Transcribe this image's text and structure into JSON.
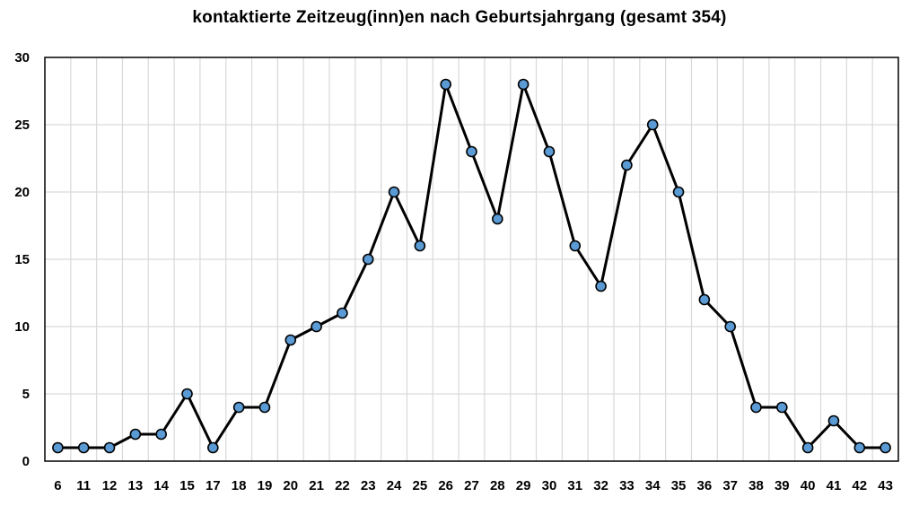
{
  "chart_data": {
    "type": "line",
    "title": "kontaktierte Zeitzeug(inn)en nach Geburtsjahrgang (gesamt 354)",
    "xlabel": "",
    "ylabel": "",
    "categories": [
      "6",
      "11",
      "12",
      "13",
      "14",
      "15",
      "17",
      "18",
      "19",
      "20",
      "21",
      "22",
      "23",
      "24",
      "25",
      "26",
      "27",
      "28",
      "29",
      "30",
      "31",
      "32",
      "33",
      "34",
      "35",
      "36",
      "37",
      "38",
      "39",
      "40",
      "41",
      "42",
      "43"
    ],
    "series": [
      {
        "values": [
          1,
          1,
          1,
          2,
          2,
          5,
          1,
          4,
          4,
          9,
          10,
          11,
          15,
          20,
          16,
          28,
          23,
          18,
          28,
          23,
          16,
          13,
          22,
          25,
          20,
          12,
          10,
          4,
          4,
          1,
          3,
          1,
          1
        ]
      }
    ],
    "ylim": [
      0,
      30
    ],
    "yticks": [
      0,
      5,
      10,
      15,
      20,
      25,
      30
    ],
    "grid": true,
    "legend": "none",
    "colors": {
      "line": "#000000",
      "marker_fill": "#5b9bd5",
      "marker_edge": "#000000",
      "grid": "#d9d9d9",
      "frame": "#000000"
    }
  }
}
